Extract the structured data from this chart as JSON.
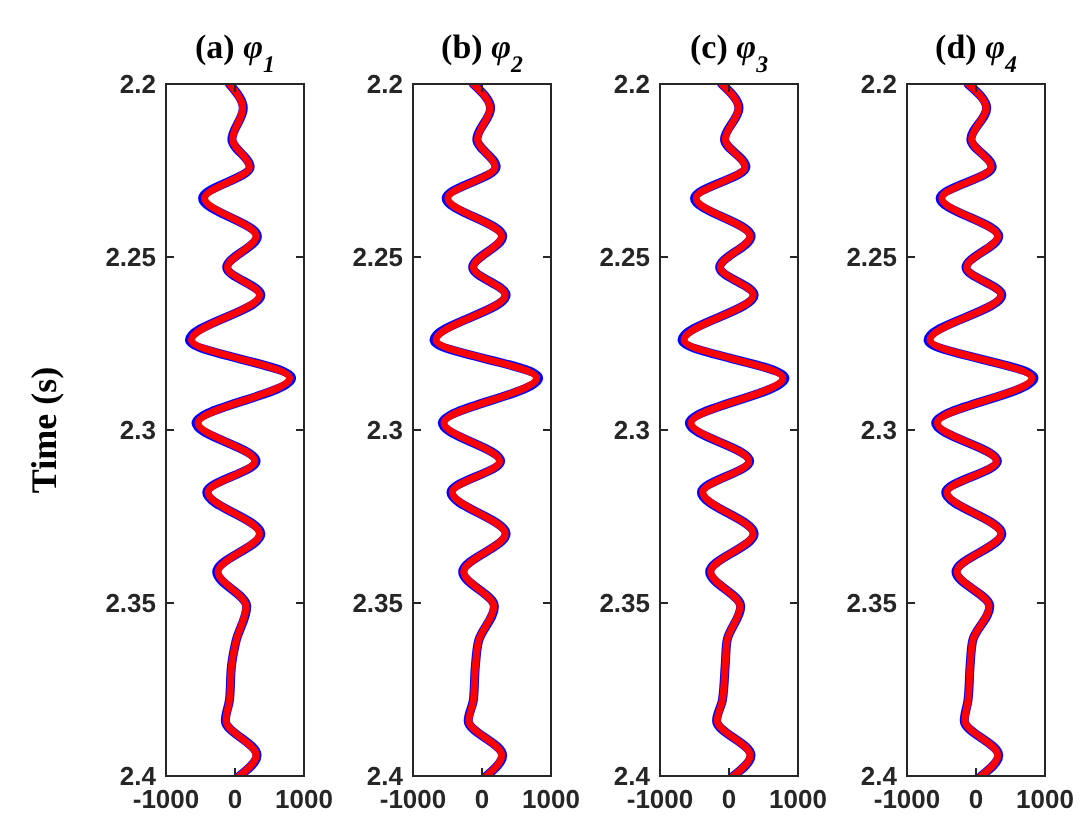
{
  "chart_data": [
    {
      "type": "line",
      "title": "(a) φ$_{1}$",
      "ylabel": "Time (s)",
      "xlim": [
        -1000,
        1000
      ],
      "xticks": [
        -1000,
        0,
        1000
      ],
      "ylim": [
        2.4,
        2.2
      ],
      "yticks": [
        2.2,
        2.25,
        2.3,
        2.35,
        2.4
      ],
      "grid": false,
      "series": [
        {
          "color": "#0000ff",
          "x": [
            -80,
            120,
            -45,
            220,
            -470,
            325,
            -120,
            375,
            -660,
            820,
            -565,
            305,
            -410,
            375,
            -265,
            170,
            15,
            -50,
            -80,
            -140,
            320,
            65
          ],
          "values": [
            2.2,
            2.207,
            2.216,
            2.224,
            2.233,
            2.244,
            2.253,
            2.261,
            2.274,
            2.285,
            2.298,
            2.309,
            2.318,
            2.33,
            2.341,
            2.351,
            2.361,
            2.368,
            2.378,
            2.384,
            2.394,
            2.4
          ]
        },
        {
          "color": "#ff0000",
          "x": [
            -80,
            110,
            -35,
            210,
            -440,
            305,
            -110,
            355,
            -630,
            790,
            -535,
            285,
            -390,
            355,
            -245,
            160,
            15,
            -50,
            -80,
            -130,
            305,
            65
          ],
          "values": [
            2.2,
            2.207,
            2.216,
            2.224,
            2.233,
            2.244,
            2.253,
            2.261,
            2.274,
            2.285,
            2.298,
            2.309,
            2.318,
            2.33,
            2.341,
            2.351,
            2.361,
            2.368,
            2.378,
            2.384,
            2.394,
            2.4
          ]
        }
      ]
    },
    {
      "type": "line",
      "title": "(b) φ$_{2}$",
      "xlim": [
        -1000,
        1000
      ],
      "xticks": [
        -1000,
        0,
        1000
      ],
      "ylim": [
        2.4,
        2.2
      ],
      "yticks": [
        2.2,
        2.25,
        2.3,
        2.35,
        2.4
      ],
      "grid": false,
      "series": [
        {
          "color": "#0000ff",
          "x": [
            -125,
            125,
            -75,
            205,
            -520,
            300,
            -135,
            350,
            -695,
            820,
            -575,
            270,
            -450,
            350,
            -280,
            180,
            -50,
            -95,
            -125,
            -200,
            300,
            65
          ],
          "values": [
            2.2,
            2.207,
            2.216,
            2.224,
            2.233,
            2.244,
            2.253,
            2.261,
            2.274,
            2.285,
            2.298,
            2.309,
            2.318,
            2.33,
            2.341,
            2.351,
            2.361,
            2.368,
            2.378,
            2.384,
            2.394,
            2.4
          ]
        },
        {
          "color": "#ff0000",
          "x": [
            -125,
            115,
            -65,
            190,
            -495,
            285,
            -125,
            335,
            -665,
            790,
            -550,
            255,
            -430,
            335,
            -265,
            170,
            -50,
            -95,
            -125,
            -190,
            285,
            65
          ],
          "values": [
            2.2,
            2.207,
            2.216,
            2.224,
            2.233,
            2.244,
            2.253,
            2.261,
            2.274,
            2.285,
            2.298,
            2.309,
            2.318,
            2.33,
            2.341,
            2.351,
            2.361,
            2.368,
            2.378,
            2.384,
            2.394,
            2.4
          ]
        }
      ]
    },
    {
      "type": "line",
      "title": "(c) φ$_{3}$",
      "xlim": [
        -1000,
        1000
      ],
      "xticks": [
        -1000,
        0,
        1000
      ],
      "ylim": [
        2.4,
        2.2
      ],
      "yticks": [
        2.2,
        2.25,
        2.3,
        2.35,
        2.4
      ],
      "grid": false,
      "series": [
        {
          "color": "#0000ff",
          "x": [
            -105,
            145,
            -65,
            245,
            -500,
            320,
            -135,
            365,
            -680,
            810,
            -575,
            300,
            -400,
            365,
            -280,
            170,
            -30,
            -55,
            -95,
            -180,
            320,
            65
          ],
          "values": [
            2.2,
            2.207,
            2.216,
            2.224,
            2.233,
            2.244,
            2.253,
            2.261,
            2.274,
            2.285,
            2.298,
            2.309,
            2.318,
            2.33,
            2.341,
            2.351,
            2.361,
            2.368,
            2.378,
            2.384,
            2.394,
            2.4
          ]
        },
        {
          "color": "#ff0000",
          "x": [
            -105,
            135,
            -55,
            230,
            -475,
            305,
            -125,
            350,
            -650,
            780,
            -550,
            285,
            -380,
            350,
            -265,
            160,
            -30,
            -55,
            -95,
            -170,
            305,
            65
          ],
          "values": [
            2.2,
            2.207,
            2.216,
            2.224,
            2.233,
            2.244,
            2.253,
            2.261,
            2.274,
            2.285,
            2.298,
            2.309,
            2.318,
            2.33,
            2.341,
            2.351,
            2.361,
            2.368,
            2.378,
            2.384,
            2.394,
            2.4
          ]
        }
      ]
    },
    {
      "type": "line",
      "title": "(d) φ$_{4}$",
      "xlim": [
        -1000,
        1000
      ],
      "xticks": [
        -1000,
        0,
        1000
      ],
      "ylim": [
        2.4,
        2.2
      ],
      "yticks": [
        2.2,
        2.25,
        2.3,
        2.35,
        2.4
      ],
      "grid": false,
      "series": [
        {
          "color": "#0000ff",
          "x": [
            -115,
            155,
            -75,
            235,
            -520,
            330,
            -145,
            375,
            -695,
            840,
            -585,
            310,
            -440,
            375,
            -290,
            200,
            -50,
            -85,
            -115,
            -170,
            330,
            75
          ],
          "values": [
            2.2,
            2.207,
            2.216,
            2.224,
            2.233,
            2.244,
            2.253,
            2.261,
            2.274,
            2.285,
            2.298,
            2.309,
            2.318,
            2.33,
            2.341,
            2.351,
            2.361,
            2.368,
            2.378,
            2.384,
            2.394,
            2.4
          ]
        },
        {
          "color": "#ff0000",
          "x": [
            -115,
            145,
            -65,
            220,
            -495,
            315,
            -135,
            360,
            -665,
            810,
            -560,
            295,
            -420,
            360,
            -275,
            190,
            -50,
            -85,
            -115,
            -160,
            315,
            75
          ],
          "values": [
            2.2,
            2.207,
            2.216,
            2.224,
            2.233,
            2.244,
            2.253,
            2.261,
            2.274,
            2.285,
            2.298,
            2.309,
            2.318,
            2.33,
            2.341,
            2.351,
            2.361,
            2.368,
            2.378,
            2.384,
            2.394,
            2.4
          ]
        }
      ]
    }
  ]
}
